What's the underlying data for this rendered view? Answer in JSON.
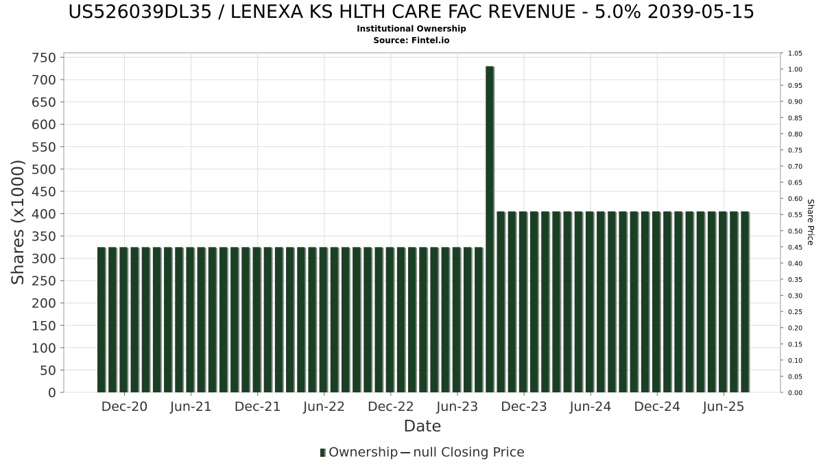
{
  "chart_data": {
    "type": "bar",
    "title": "US526039DL35 / LENEXA KS HLTH CARE FAC REVENUE - 5.0% 2039-05-15",
    "subtitle": "Institutional Ownership",
    "source": "Source: Fintel.io",
    "xlabel": "Date",
    "ylabel": "Shares (x1000)",
    "y2label": "Share Price",
    "ylim": [
      0,
      760
    ],
    "y2lim": [
      0,
      1.05
    ],
    "y_ticks": [
      "0",
      "50",
      "100",
      "150",
      "200",
      "250",
      "300",
      "350",
      "400",
      "450",
      "500",
      "550",
      "600",
      "650",
      "700",
      "750"
    ],
    "y2_ticks": [
      "0.00",
      "0.05",
      "0.10",
      "0.15",
      "0.20",
      "0.25",
      "0.30",
      "0.35",
      "0.40",
      "0.45",
      "0.50",
      "0.55",
      "0.60",
      "0.65",
      "0.70",
      "0.75",
      "0.80",
      "0.85",
      "0.90",
      "0.95",
      "1.00",
      "1.05"
    ],
    "x_ticks": [
      "Dec-20",
      "Jun-21",
      "Dec-21",
      "Jun-22",
      "Dec-22",
      "Jun-23",
      "Dec-23",
      "Jun-24",
      "Dec-24",
      "Jun-25"
    ],
    "grid": true,
    "legend_position": "bottom",
    "colors": {
      "bar": "#1a4024",
      "bar_shadow": "#888888",
      "grid": "#dddddd",
      "line": "#333333"
    },
    "series": [
      {
        "name": "Ownership",
        "values": [
          325,
          325,
          325,
          325,
          325,
          325,
          325,
          325,
          325,
          325,
          325,
          325,
          325,
          325,
          325,
          325,
          325,
          325,
          325,
          325,
          325,
          325,
          325,
          325,
          325,
          325,
          325,
          325,
          325,
          325,
          325,
          325,
          325,
          325,
          325,
          730,
          405,
          405,
          405,
          405,
          405,
          405,
          405,
          405,
          405,
          405,
          405,
          405,
          405,
          405,
          405,
          405,
          405,
          405,
          405,
          405,
          405,
          405,
          405
        ]
      }
    ]
  },
  "legend": {
    "ownership_label": "Ownership",
    "price_label": "null Closing Price"
  }
}
